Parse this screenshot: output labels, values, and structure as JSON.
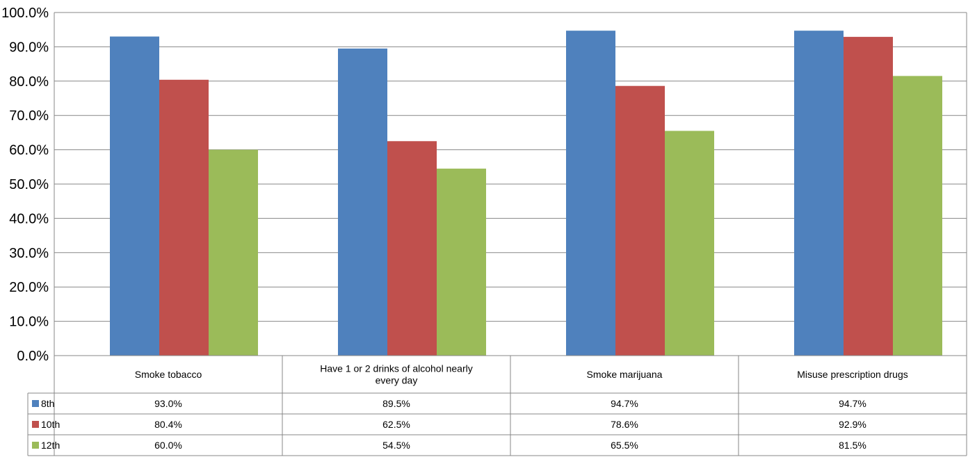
{
  "chart_data": {
    "type": "bar",
    "categories": [
      [
        "Smoke tobacco"
      ],
      [
        "Have 1 or 2 drinks of alcohol nearly",
        "every day"
      ],
      [
        "Smoke marijuana"
      ],
      [
        "Misuse prescription drugs"
      ]
    ],
    "series": [
      {
        "name": "8th",
        "color": "#4F81BD",
        "values": [
          93.0,
          89.5,
          94.7,
          94.7
        ],
        "labels": [
          "93.0%",
          "89.5%",
          "94.7%",
          "94.7%"
        ]
      },
      {
        "name": "10th",
        "color": "#C0504D",
        "values": [
          80.4,
          62.5,
          78.6,
          92.9
        ],
        "labels": [
          "80.4%",
          "62.5%",
          "78.6%",
          "92.9%"
        ]
      },
      {
        "name": "12th",
        "color": "#9BBB59",
        "values": [
          60.0,
          54.5,
          65.5,
          81.5
        ],
        "labels": [
          "60.0%",
          "54.5%",
          "65.5%",
          "81.5%"
        ]
      }
    ],
    "yticks": [
      "0.0%",
      "10.0%",
      "20.0%",
      "30.0%",
      "40.0%",
      "50.0%",
      "60.0%",
      "70.0%",
      "80.0%",
      "90.0%",
      "100.0%"
    ],
    "ylim": [
      0,
      100
    ],
    "grid": true,
    "legend": "data-table"
  }
}
